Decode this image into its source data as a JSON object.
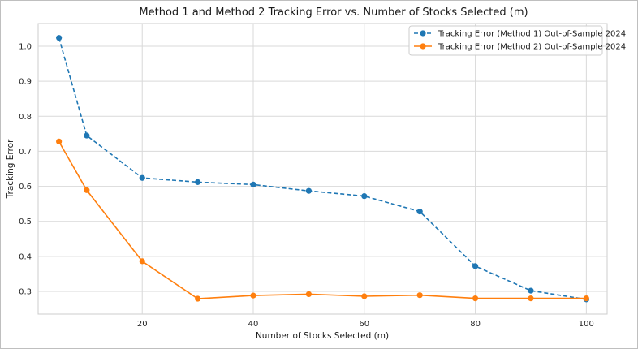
{
  "chart_data": {
    "type": "line",
    "title": "Method 1 and Method 2 Tracking Error vs. Number of Stocks Selected (m)",
    "xlabel": "Number of Stocks Selected (m)",
    "ylabel": "Tracking Error",
    "xlim": [
      1.25,
      103.75
    ],
    "ylim": [
      0.235,
      1.065
    ],
    "x_ticks": [
      20,
      40,
      60,
      80,
      100
    ],
    "y_ticks": [
      0.3,
      0.4,
      0.5,
      0.6,
      0.7,
      0.8,
      0.9,
      1.0
    ],
    "x_tick_labels": [
      "20",
      "40",
      "60",
      "80",
      "100"
    ],
    "y_tick_labels": [
      "0.3",
      "0.4",
      "0.5",
      "0.6",
      "0.7",
      "0.8",
      "0.9",
      "1.0"
    ],
    "grid": true,
    "legend_position": "top-right",
    "x": [
      5,
      10,
      20,
      30,
      40,
      50,
      60,
      70,
      80,
      90,
      100
    ],
    "series": [
      {
        "name": "Tracking Error (Method 1) Out-of-Sample 2024",
        "color": "#1f77b4",
        "style": "dashed",
        "values": [
          1.024,
          0.745,
          0.624,
          0.612,
          0.605,
          0.587,
          0.572,
          0.528,
          0.372,
          0.302,
          0.277
        ]
      },
      {
        "name": "Tracking Error (Method 2) Out-of-Sample 2024",
        "color": "#ff7f0e",
        "style": "solid",
        "values": [
          0.728,
          0.589,
          0.386,
          0.279,
          0.288,
          0.292,
          0.286,
          0.289,
          0.28,
          0.28,
          0.28
        ]
      }
    ]
  }
}
